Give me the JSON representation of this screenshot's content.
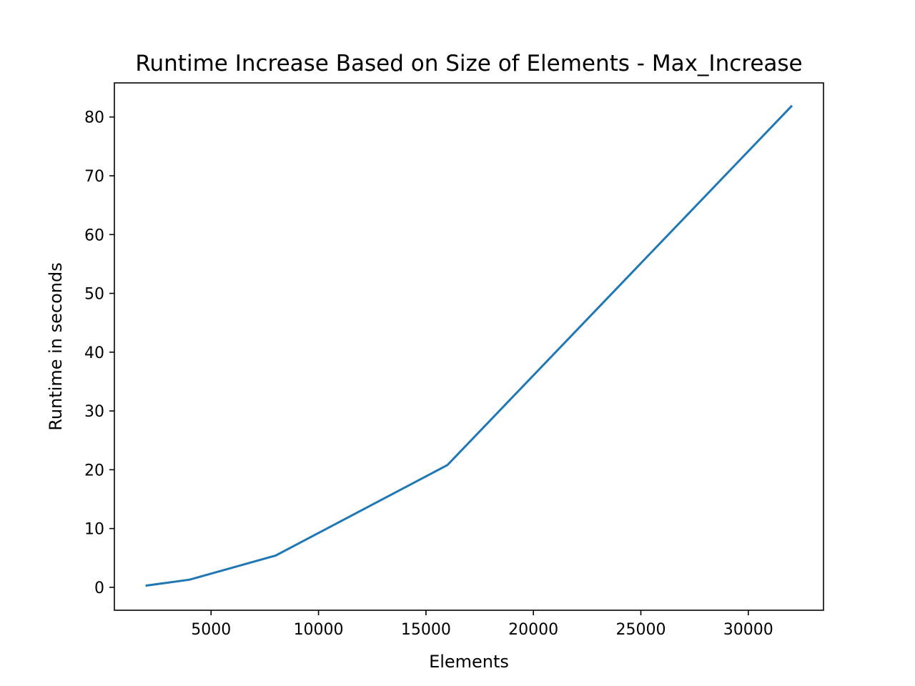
{
  "chart_data": {
    "type": "line",
    "title": "Runtime Increase Based on Size of Elements - Max_Increase",
    "xlabel": "Elements",
    "ylabel": "Runtime in seconds",
    "xlim": [
      500,
      33500
    ],
    "ylim": [
      -3.9,
      85.8
    ],
    "x_ticks": [
      5000,
      10000,
      15000,
      20000,
      25000,
      30000
    ],
    "y_ticks": [
      0,
      10,
      20,
      30,
      40,
      50,
      60,
      70,
      80
    ],
    "x_tick_labels": [
      "5000",
      "10000",
      "15000",
      "20000",
      "25000",
      "30000"
    ],
    "y_tick_labels": [
      "0",
      "10",
      "20",
      "30",
      "40",
      "50",
      "60",
      "70",
      "80"
    ],
    "grid": false,
    "legend": "none",
    "series": [
      {
        "color": "#1f77b4",
        "x": [
          2000,
          4000,
          8000,
          16000,
          32000
        ],
        "y": [
          0.3,
          1.3,
          5.4,
          20.8,
          81.8
        ]
      }
    ]
  }
}
